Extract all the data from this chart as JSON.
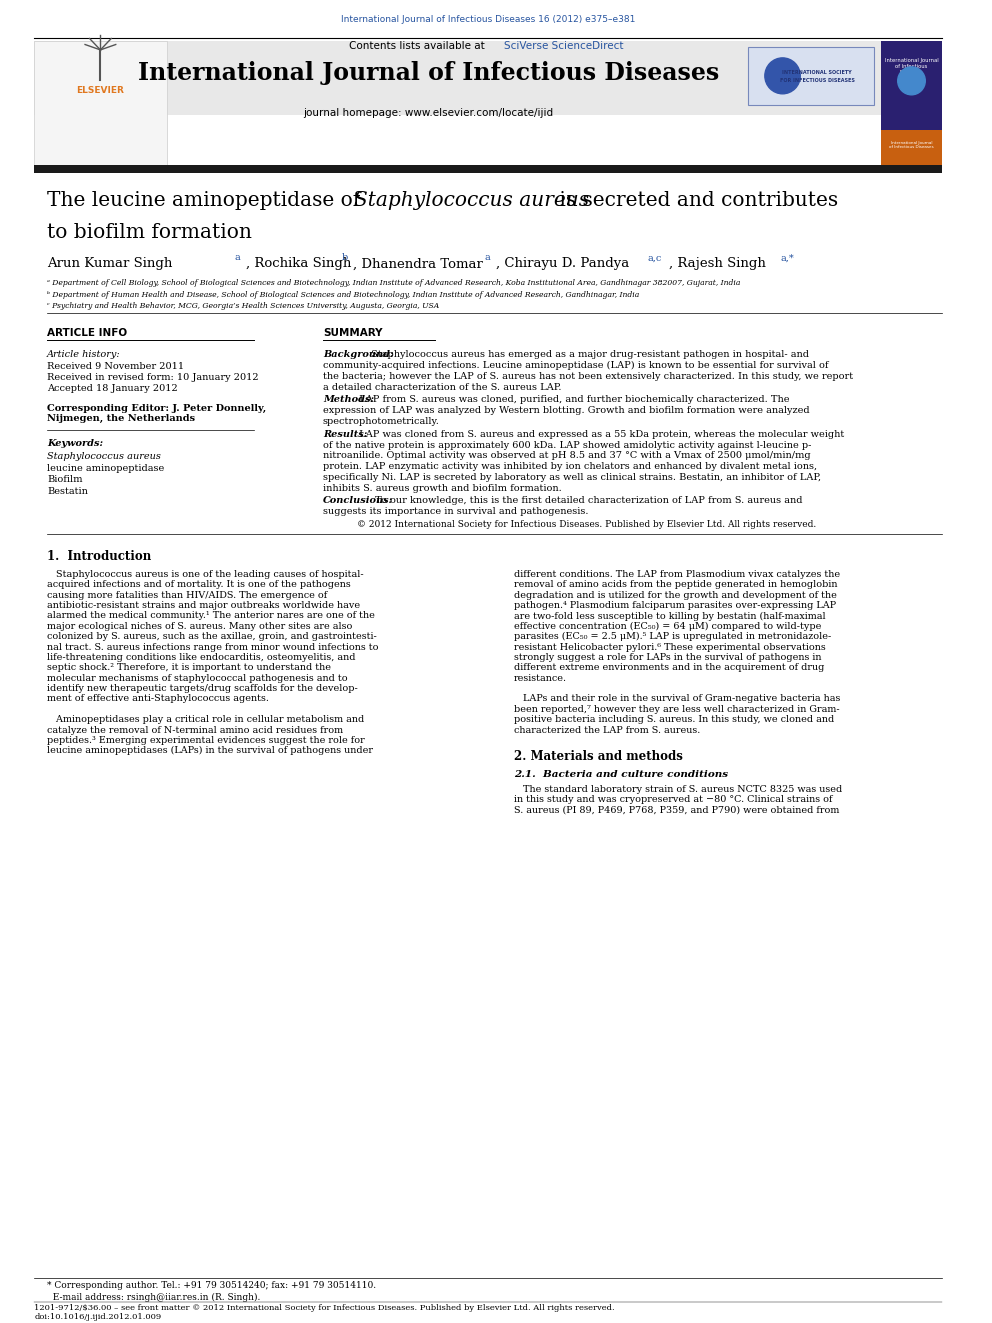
{
  "journal_ref": "International Journal of Infectious Diseases 16 (2012) e375–e381",
  "journal_title": "International Journal of Infectious Diseases",
  "contents_line": "Contents lists available at SciVerse ScienceDirect",
  "journal_homepage": "journal homepage: www.elsevier.com/locate/ijid",
  "article_info_header": "ARTICLE INFO",
  "article_history_label": "Article history:",
  "received1": "Received 9 November 2011",
  "received2": "Received in revised form: 10 January 2012",
  "accepted": "Accepted 18 January 2012",
  "corresponding_editor_line1": "Corresponding Editor: J. Peter Donnelly,",
  "corresponding_editor_line2": "Nijmegen, the Netherlands",
  "keywords_header": "Keywords:",
  "keywords": [
    "Staphylococcus aureus",
    "leucine aminopeptidase",
    "Biofilm",
    "Bestatin"
  ],
  "summary_header": "SUMMARY",
  "affil_a": "ᵃ Department of Cell Biology, School of Biological Sciences and Biotechnology, Indian Institute of Advanced Research, Koba Institutional Area, Gandhinagar 382007, Gujarat, India",
  "affil_b": "ᵇ Department of Human Health and Disease, School of Biological Sciences and Biotechnology, Indian Institute of Advanced Research, Gandhinagar, India",
  "affil_c": "ᶜ Psychiatry and Health Behavior, MCG, Georgia’s Health Sciences University, Augusta, Georgia, USA",
  "copyright_text": "© 2012 International Society for Infectious Diseases. Published by Elsevier Ltd. All rights reserved.",
  "intro_header": "1.  Introduction",
  "section2_header": "2. Materials and methods",
  "section21_header": "2.1.  Bacteria and culture conditions",
  "footer_text_line1": "* Corresponding author. Tel.: +91 79 30514240; fax: +91 79 30514110.",
  "footer_text_line2": "  E-mail address: rsingh@iiar.res.in (R. Singh).",
  "footer_bottom": "1201-9712/$36.00 – see front matter © 2012 International Society for Infectious Diseases. Published by Elsevier Ltd. All rights reserved.",
  "footer_doi": "doi:10.1016/j.ijid.2012.01.009",
  "bg_color": "#ffffff",
  "blue_color": "#2855a0",
  "orange_color": "#e07820",
  "intro_col1_lines": [
    "   Staphylococcus aureus is one of the leading causes of hospital-",
    "acquired infections and of mortality. It is one of the pathogens",
    "causing more fatalities than HIV/AIDS. The emergence of",
    "antibiotic-resistant strains and major outbreaks worldwide have",
    "alarmed the medical community.¹ The anterior nares are one of the",
    "major ecological niches of S. aureus. Many other sites are also",
    "colonized by S. aureus, such as the axillae, groin, and gastrointesti-",
    "nal tract. S. aureus infections range from minor wound infections to",
    "life-threatening conditions like endocarditis, osteomyelitis, and",
    "septic shock.² Therefore, it is important to understand the",
    "molecular mechanisms of staphylococcal pathogenesis and to",
    "identify new therapeutic targets/drug scaffolds for the develop-",
    "ment of effective anti-Staphylococcus agents.",
    "",
    "   Aminopeptidases play a critical role in cellular metabolism and",
    "catalyze the removal of N-terminal amino acid residues from",
    "peptides.³ Emerging experimental evidences suggest the role for",
    "leucine aminopeptidases (LAPs) in the survival of pathogens under"
  ],
  "intro_col2_lines": [
    "different conditions. The LAP from Plasmodium vivax catalyzes the",
    "removal of amino acids from the peptide generated in hemoglobin",
    "degradation and is utilized for the growth and development of the",
    "pathogen.⁴ Plasmodium falciparum parasites over-expressing LAP",
    "are two-fold less susceptible to killing by bestatin (half-maximal",
    "effective concentration (EC₅₀) = 64 μM) compared to wild-type",
    "parasites (EC₅₀ = 2.5 μM).⁵ LAP is upregulated in metronidazole-",
    "resistant Helicobacter pylori.⁶ These experimental observations",
    "strongly suggest a role for LAPs in the survival of pathogens in",
    "different extreme environments and in the acquirement of drug",
    "resistance.",
    "",
    "   LAPs and their role in the survival of Gram-negative bacteria has",
    "been reported,⁷ however they are less well characterized in Gram-",
    "positive bacteria including S. aureus. In this study, we cloned and",
    "characterized the LAP from S. aureus."
  ],
  "sec21_text_lines": [
    "   The standard laboratory strain of S. aureus NCTC 8325 was used",
    "in this study and was cryopreserved at −80 °C. Clinical strains of",
    "S. aureus (PI 89, P469, P768, P359, and P790) were obtained from"
  ],
  "summary_sections": [
    {
      "label": "Background:",
      "lines": [
        " Staphylococcus aureus has emerged as a major drug-resistant pathogen in hospital- and",
        "community-acquired infections. Leucine aminopeptidase (LAP) is known to be essential for survival of",
        "the bacteria; however the LAP of S. aureus has not been extensively characterized. In this study, we report",
        "a detailed characterization of the S. aureus LAP."
      ]
    },
    {
      "label": "Methods:",
      "lines": [
        " LAP from S. aureus was cloned, purified, and further biochemically characterized. The",
        "expression of LAP was analyzed by Western blotting. Growth and biofilm formation were analyzed",
        "spectrophotometrically."
      ]
    },
    {
      "label": "Results:",
      "lines": [
        " LAP was cloned from S. aureus and expressed as a 55 kDa protein, whereas the molecular weight",
        "of the native protein is approximately 600 kDa. LAP showed amidolytic activity against l-leucine p-",
        "nitroanilide. Optimal activity was observed at pH 8.5 and 37 °C with a Vmax of 2500 μmol/min/mg",
        "protein. LAP enzymatic activity was inhibited by ion chelators and enhanced by divalent metal ions,",
        "specifically Ni. LAP is secreted by laboratory as well as clinical strains. Bestatin, an inhibitor of LAP,",
        "inhibits S. aureus growth and biofilm formation."
      ]
    },
    {
      "label": "Conclusions:",
      "lines": [
        " To our knowledge, this is the first detailed characterization of LAP from S. aureus and",
        "suggests its importance in survival and pathogenesis."
      ]
    }
  ]
}
